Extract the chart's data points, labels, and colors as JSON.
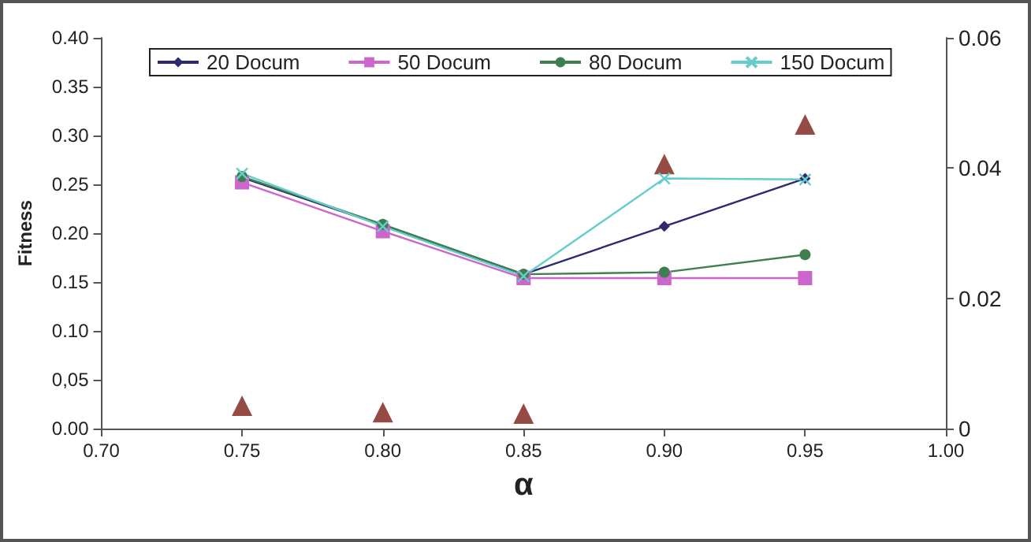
{
  "chart_data": {
    "type": "line",
    "xlabel": "α",
    "ylabel": "Fitness",
    "x": [
      0.75,
      0.8,
      0.85,
      0.9,
      0.95
    ],
    "xlim": [
      0.7,
      1.0
    ],
    "xticks": [
      {
        "value": 0.7,
        "label": "0.70"
      },
      {
        "value": 0.75,
        "label": "0.75"
      },
      {
        "value": 0.8,
        "label": "0.80"
      },
      {
        "value": 0.85,
        "label": "0.85"
      },
      {
        "value": 0.9,
        "label": "0.90"
      },
      {
        "value": 0.95,
        "label": "0.95"
      },
      {
        "value": 1.0,
        "label": "1.00"
      }
    ],
    "ylim": [
      0,
      0.4
    ],
    "yticks": [
      {
        "value": 0,
        "label": "0.00"
      },
      {
        "value": 0.05,
        "label": "0,05"
      },
      {
        "value": 0.1,
        "label": "0.10"
      },
      {
        "value": 0.15,
        "label": "0.15"
      },
      {
        "value": 0.2,
        "label": "0.20"
      },
      {
        "value": 0.25,
        "label": "0.25"
      },
      {
        "value": 0.3,
        "label": "0.30"
      },
      {
        "value": 0.35,
        "label": "0.35"
      },
      {
        "value": 0.4,
        "label": "0.40"
      }
    ],
    "y2lim": [
      0,
      0.06
    ],
    "y2ticks": [
      0,
      {
        "value": 0.02,
        "label": "0.02"
      },
      {
        "value": 0.04,
        "label": "0.04"
      },
      {
        "value": 0.06,
        "label": "0.06"
      }
    ],
    "grid": false,
    "legend": "top",
    "series": [
      {
        "name": "20 Docum",
        "color": "#2e2a6e",
        "marker": "diamond",
        "values": [
          0.257,
          0.208,
          0.158,
          0.207,
          0.256
        ]
      },
      {
        "name": "50 Docum",
        "color": "#cc66cc",
        "marker": "square",
        "values": [
          0.252,
          0.202,
          0.154,
          0.154,
          0.154
        ]
      },
      {
        "name": "80 Docum",
        "color": "#3f7f4f",
        "marker": "circle",
        "values": [
          0.258,
          0.209,
          0.158,
          0.16,
          0.178
        ]
      },
      {
        "name": "150 Docum",
        "color": "#66cccc",
        "marker": "cross",
        "values": [
          0.261,
          0.207,
          0.156,
          0.256,
          0.255
        ]
      },
      {
        "type": "scatter",
        "axis": "y2",
        "color": "#7a1e14",
        "marker": "triangle",
        "values": [
          0.0035,
          0.0025,
          0.0023,
          0.0406,
          0.0467
        ]
      }
    ]
  }
}
